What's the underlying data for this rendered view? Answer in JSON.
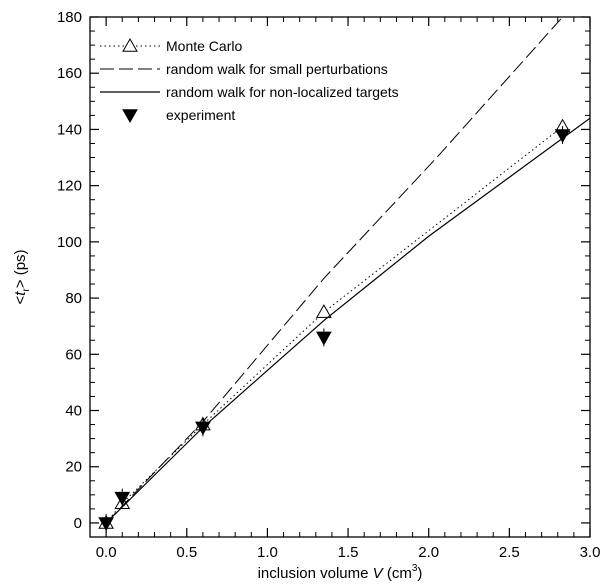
{
  "chart_data": {
    "type": "line",
    "xlabel": {
      "pre": "inclusion volume ",
      "var": "V",
      "unit": " (cm",
      "sup": "3",
      "close": ")"
    },
    "ylabel": {
      "open": "<",
      "var": "t",
      "sub": "r",
      "close": "> (ps)"
    },
    "xlim": [
      -0.1,
      3.0
    ],
    "ylim": [
      -5,
      180
    ],
    "xticks": [
      0.0,
      0.5,
      1.0,
      1.5,
      2.0,
      2.5,
      3.0
    ],
    "xtick_labels": [
      "0.0",
      "0.5",
      "1.0",
      "1.5",
      "2.0",
      "2.5",
      "3.0"
    ],
    "yticks": [
      0,
      20,
      40,
      60,
      80,
      100,
      120,
      140,
      160,
      180
    ],
    "ytick_labels": [
      "0",
      "20",
      "40",
      "60",
      "80",
      "100",
      "120",
      "140",
      "160",
      "180"
    ],
    "grid": false,
    "legend_position": "top-left",
    "series": [
      {
        "name": "Monte Carlo",
        "style": "dotted-open-triangle",
        "x": [
          0.0,
          0.1,
          0.6,
          1.35,
          2.83
        ],
        "y": [
          0,
          7,
          35,
          75,
          141
        ]
      },
      {
        "name": "random walk for small perturbations",
        "style": "dashed",
        "x": [
          0.0,
          0.6,
          1.35,
          2.05,
          2.83
        ],
        "y": [
          0,
          36,
          87,
          130,
          180
        ]
      },
      {
        "name": "random walk for non-localized targets",
        "style": "solid",
        "x": [
          0.0,
          0.6,
          1.35,
          2.0,
          3.0
        ],
        "y": [
          0,
          34,
          72,
          102,
          144
        ]
      },
      {
        "name": "experiment",
        "style": "filled-down-triangle",
        "x": [
          0.0,
          0.1,
          0.6,
          1.35,
          2.83
        ],
        "y": [
          0,
          9,
          34,
          66,
          138
        ]
      }
    ]
  }
}
